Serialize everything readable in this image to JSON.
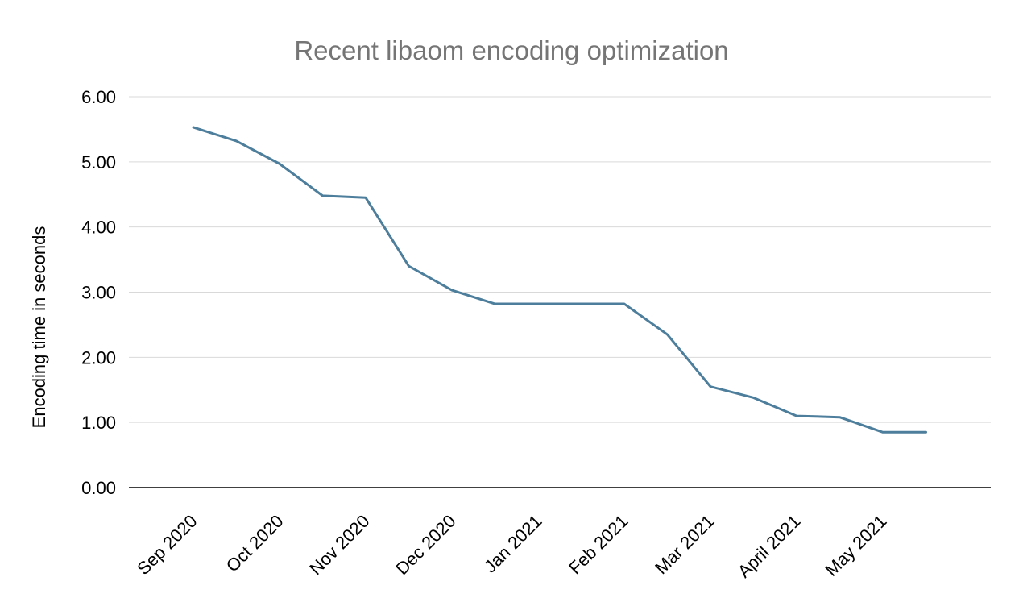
{
  "chart_data": {
    "type": "line",
    "title": "Recent libaom encoding optimization",
    "ylabel": "Encoding time in seconds",
    "xlabel": "",
    "ylim": [
      0,
      6
    ],
    "ytick_labels": [
      "0.00",
      "1.00",
      "2.00",
      "3.00",
      "4.00",
      "5.00",
      "6.00"
    ],
    "ytick_values": [
      0,
      1,
      2,
      3,
      4,
      5,
      6
    ],
    "categories": [
      "Sep 2020",
      "Oct 2020",
      "Nov 2020",
      "Dec 2020",
      "Jan 2021",
      "Feb 2021",
      "Mar 2021",
      "April 2021",
      "May 2021"
    ],
    "series": [
      {
        "name": "Encoding time",
        "x": [
          0,
          0.5,
          1,
          1.5,
          2,
          2.5,
          3,
          3.5,
          4,
          4.5,
          5,
          5.5,
          6,
          6.5,
          7,
          7.5,
          8,
          8.5
        ],
        "values": [
          5.53,
          5.32,
          4.97,
          4.48,
          4.45,
          3.4,
          3.03,
          2.82,
          2.82,
          2.82,
          2.82,
          2.35,
          1.55,
          1.38,
          1.1,
          1.08,
          0.85,
          0.85
        ]
      }
    ],
    "grid": true,
    "legend": "none",
    "line_color": "#4d7e9c",
    "grid_color": "#d9d9d9",
    "axis_color": "#000000",
    "title_color": "#757575"
  }
}
